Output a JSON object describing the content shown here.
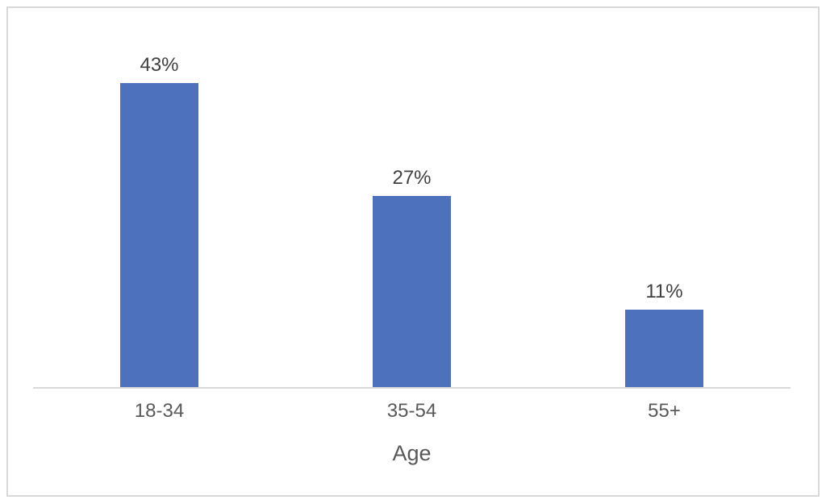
{
  "chart_data": {
    "type": "bar",
    "title": "",
    "categories": [
      "18-34",
      "35-54",
      "55+"
    ],
    "values": [
      43,
      27,
      11
    ],
    "data_labels": [
      "43%",
      "27%",
      "11%"
    ],
    "xlabel": "Age",
    "ylabel": "",
    "ylim": [
      0,
      50
    ],
    "grid": false,
    "legend": false,
    "colors": {
      "bar": "#4e71be",
      "value_label": "#404040",
      "tick_label": "#595959",
      "axis_line": "#d9d9d9",
      "frame_border": "#d8d8d8",
      "background": "#ffffff"
    }
  }
}
